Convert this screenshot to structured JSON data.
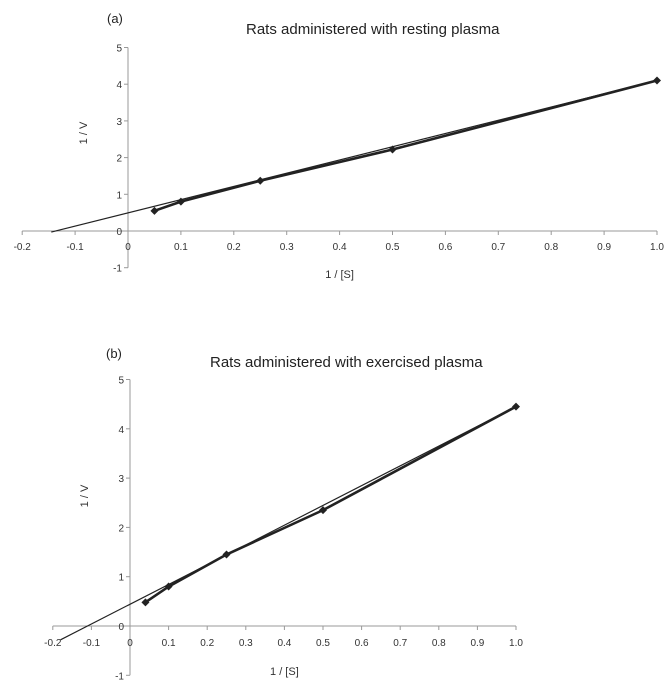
{
  "chart_data": [
    {
      "type": "scatter",
      "panel_label": "(a)",
      "title": "Rats administered with resting plasma",
      "xlabel": "1 / [S]",
      "ylabel": "1 / V",
      "xlim": [
        -0.2,
        1.0
      ],
      "ylim": [
        -1,
        5
      ],
      "x_ticks": [
        "-0.2",
        "-0.1",
        "0",
        "0.1",
        "0.2",
        "0.3",
        "0.4",
        "0.5",
        "0.6",
        "0.7",
        "0.8",
        "0.9",
        "1.0"
      ],
      "y_ticks": [
        "-1",
        "0",
        "1",
        "2",
        "3",
        "4",
        "5"
      ],
      "series": [
        {
          "x": [
            0.05,
            0.1,
            0.25,
            0.5,
            1.0
          ],
          "y": [
            0.55,
            0.8,
            1.37,
            2.22,
            4.1
          ]
        }
      ],
      "fit_line": {
        "x": [
          -0.145,
          1.0
        ],
        "y": [
          -0.03,
          4.1
        ]
      },
      "grid": false,
      "marker_color": "#222222",
      "line_color": "#222222"
    },
    {
      "type": "scatter",
      "panel_label": "(b)",
      "title": "Rats administered with exercised plasma",
      "xlabel": "1 / [S]",
      "ylabel": "1 / V",
      "xlim": [
        -0.2,
        1.0
      ],
      "ylim": [
        -1,
        5
      ],
      "x_ticks": [
        "-0.2",
        "-0.1",
        "0",
        "0.1",
        "0.2",
        "0.3",
        "0.4",
        "0.5",
        "0.6",
        "0.7",
        "0.8",
        "0.9",
        "1.0"
      ],
      "y_ticks": [
        "-1",
        "0",
        "1",
        "2",
        "3",
        "4",
        "5"
      ],
      "series": [
        {
          "x": [
            0.04,
            0.1,
            0.25,
            0.5,
            1.0
          ],
          "y": [
            0.48,
            0.8,
            1.45,
            2.35,
            4.45
          ]
        }
      ],
      "fit_line": {
        "x": [
          -0.18,
          1.0
        ],
        "y": [
          -0.28,
          4.45
        ]
      },
      "grid": false,
      "marker_color": "#222222",
      "line_color": "#222222"
    }
  ]
}
